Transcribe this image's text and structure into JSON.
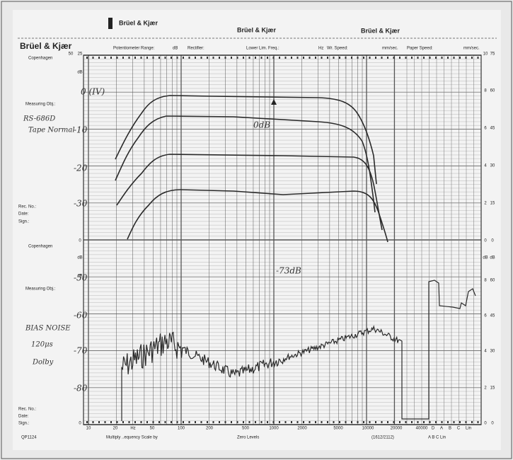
{
  "header": {
    "brand": [
      "Brüel & Kjær",
      "Brüel & Kjær",
      "Brüel & Kjær"
    ],
    "fields": [
      "Potentiometer Range:",
      "dB",
      "Rectifier:",
      "Lower Lim. Freq.:",
      "Hz",
      "Wr. Speed:",
      "mm/sec.",
      "Paper Speed:",
      "mm/sec."
    ]
  },
  "sidebar": {
    "brand": "Brüel & Kjær",
    "top": [
      "Copenhagen",
      "Measuring Obj.:",
      "Rec. No.:",
      "Date:",
      "Sign.:"
    ],
    "bottom": [
      "Copenhagen",
      "Measuring Obj.:",
      "Rec. No.:",
      "Date:",
      "Sign.:"
    ]
  },
  "footer": [
    "QP1124",
    "Multiply ..equency Scale by",
    "Zero Levels",
    "(1612/2112)",
    "A   B   C   Lin"
  ],
  "notes": {
    "device": "RS-686D",
    "tape": "Tape Normal",
    "measure": "BIAS NOISE",
    "eq": "120μs",
    "nr": "Dolby",
    "levels": [
      "0 (IV)",
      "-10",
      "-20",
      "-30",
      "-50",
      "-60",
      "-70",
      "-80"
    ],
    "ref": "0dB",
    "noise": "-73dB"
  },
  "axis": {
    "frequency": [
      "10",
      "20",
      "Hz",
      "50",
      "100",
      "200",
      "500",
      "1000",
      "2000",
      "5000",
      "10000",
      "20000",
      "40000"
    ],
    "weighting": [
      "D",
      "A",
      "B",
      "C",
      "Lin"
    ],
    "left": [
      "50",
      "25",
      "dB",
      "dB",
      "0",
      "dB",
      "0"
    ],
    "right": [
      "10",
      "75",
      "8",
      "60",
      "6",
      "45",
      "4",
      "30",
      "2",
      "15",
      "0",
      "0",
      "dB",
      "dB",
      "8",
      "60",
      "6",
      "45",
      "4",
      "30",
      "2",
      "15",
      "0",
      "0"
    ]
  }
}
